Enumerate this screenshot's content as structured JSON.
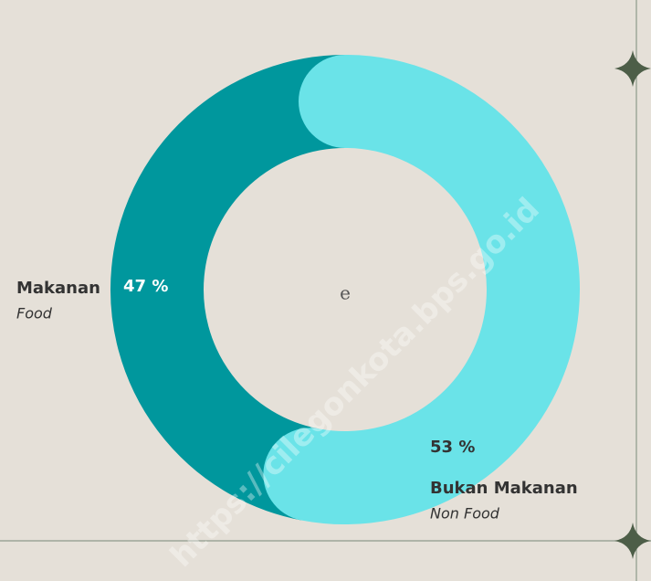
{
  "chart_data": {
    "type": "donut",
    "categories": [
      "Makanan",
      "Bukan Makanan"
    ],
    "categories_en": [
      "Food",
      "Non Food"
    ],
    "values": [
      47,
      53
    ],
    "value_labels": [
      "47 %",
      "53 %"
    ],
    "colors": [
      "#00979d",
      "#6ae3e8"
    ],
    "center_label": "e",
    "watermark": "https://cilegonkota.bps.go.id"
  }
}
